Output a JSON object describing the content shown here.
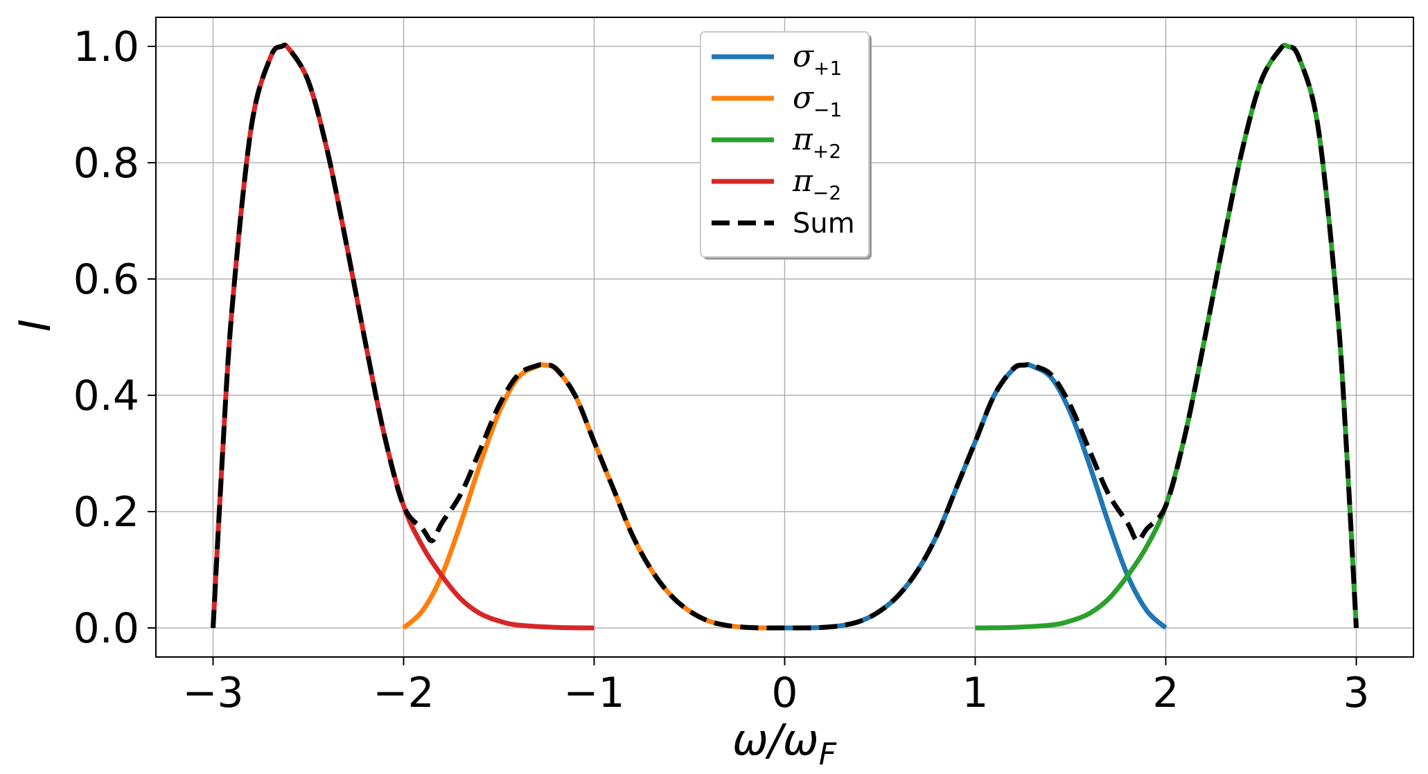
{
  "chart_data": {
    "type": "line",
    "xlabel": "ω/ω_F",
    "ylabel": "I",
    "xlim": [
      -3.3,
      3.3
    ],
    "ylim": [
      -0.05,
      1.05
    ],
    "xticks": [
      -3,
      -2,
      -1,
      0,
      1,
      2,
      3
    ],
    "xtick_labels": [
      "−3",
      "−2",
      "−1",
      "0",
      "1",
      "2",
      "3"
    ],
    "yticks": [
      0.0,
      0.2,
      0.4,
      0.6,
      0.8,
      1.0
    ],
    "ytick_labels": [
      "0.0",
      "0.2",
      "0.4",
      "0.6",
      "0.8",
      "1.0"
    ],
    "grid": true,
    "legend_position": "top-center",
    "series": [
      {
        "name": "σ₊₁",
        "base": "σ",
        "sub": "+1",
        "color": "#1f77b4",
        "style": "solid",
        "x": [
          0.0,
          0.1,
          0.2,
          0.3,
          0.4,
          0.5,
          0.6,
          0.7,
          0.8,
          0.9,
          1.0,
          1.1,
          1.2,
          1.26,
          1.3,
          1.4,
          1.5,
          1.6,
          1.7,
          1.8,
          1.9,
          2.0
        ],
        "y": [
          0.0,
          0.0,
          0.001,
          0.004,
          0.012,
          0.029,
          0.057,
          0.1,
          0.16,
          0.24,
          0.32,
          0.4,
          0.445,
          0.452,
          0.45,
          0.43,
          0.37,
          0.28,
          0.18,
          0.09,
          0.03,
          0.0
        ]
      },
      {
        "name": "σ₋₁",
        "base": "σ",
        "sub": "−1",
        "color": "#ff7f0e",
        "style": "solid",
        "x": [
          -2.0,
          -1.9,
          -1.8,
          -1.7,
          -1.6,
          -1.5,
          -1.4,
          -1.3,
          -1.26,
          -1.2,
          -1.1,
          -1.0,
          -0.9,
          -0.8,
          -0.7,
          -0.6,
          -0.5,
          -0.4,
          -0.3,
          -0.2,
          -0.1,
          0.0
        ],
        "y": [
          0.0,
          0.03,
          0.09,
          0.18,
          0.28,
          0.37,
          0.43,
          0.45,
          0.452,
          0.445,
          0.4,
          0.32,
          0.24,
          0.16,
          0.1,
          0.057,
          0.029,
          0.012,
          0.004,
          0.001,
          0.0,
          0.0
        ]
      },
      {
        "name": "π₊₂",
        "base": "π",
        "sub": "+2",
        "color": "#2ca02c",
        "style": "solid",
        "x": [
          1.0,
          1.2,
          1.4,
          1.5,
          1.6,
          1.7,
          1.8,
          1.9,
          2.0,
          2.1,
          2.2,
          2.3,
          2.4,
          2.5,
          2.6,
          2.64,
          2.7,
          2.8,
          2.9,
          2.95,
          3.0
        ],
        "y": [
          0.0,
          0.001,
          0.005,
          0.012,
          0.025,
          0.05,
          0.09,
          0.14,
          0.21,
          0.33,
          0.49,
          0.66,
          0.82,
          0.94,
          0.995,
          1.0,
          0.98,
          0.86,
          0.55,
          0.3,
          0.0
        ]
      },
      {
        "name": "π₋₂",
        "base": "π",
        "sub": "−2",
        "color": "#d62728",
        "style": "solid",
        "x": [
          -3.0,
          -2.95,
          -2.9,
          -2.8,
          -2.7,
          -2.64,
          -2.6,
          -2.5,
          -2.4,
          -2.3,
          -2.2,
          -2.1,
          -2.0,
          -1.9,
          -1.8,
          -1.7,
          -1.6,
          -1.5,
          -1.4,
          -1.2,
          -1.0
        ],
        "y": [
          0.0,
          0.3,
          0.55,
          0.86,
          0.98,
          1.0,
          0.995,
          0.94,
          0.82,
          0.66,
          0.49,
          0.33,
          0.21,
          0.14,
          0.09,
          0.05,
          0.025,
          0.012,
          0.005,
          0.001,
          0.0
        ]
      },
      {
        "name": "Sum",
        "base": "Sum",
        "sub": "",
        "color": "#000000",
        "style": "dashed",
        "x": [
          -3.0,
          -2.95,
          -2.9,
          -2.8,
          -2.7,
          -2.64,
          -2.6,
          -2.5,
          -2.4,
          -2.3,
          -2.2,
          -2.1,
          -2.0,
          -1.9,
          -1.85,
          -1.8,
          -1.7,
          -1.6,
          -1.5,
          -1.4,
          -1.3,
          -1.26,
          -1.2,
          -1.1,
          -1.0,
          -0.9,
          -0.8,
          -0.7,
          -0.6,
          -0.5,
          -0.4,
          -0.3,
          -0.2,
          -0.1,
          0.0,
          0.1,
          0.2,
          0.3,
          0.4,
          0.5,
          0.6,
          0.7,
          0.8,
          0.9,
          1.0,
          1.1,
          1.2,
          1.26,
          1.3,
          1.4,
          1.5,
          1.6,
          1.7,
          1.8,
          1.85,
          1.9,
          2.0,
          2.1,
          2.2,
          2.3,
          2.4,
          2.5,
          2.6,
          2.64,
          2.7,
          2.8,
          2.9,
          2.95,
          3.0
        ],
        "y": [
          0.0,
          0.3,
          0.55,
          0.86,
          0.98,
          1.0,
          0.995,
          0.94,
          0.82,
          0.66,
          0.49,
          0.33,
          0.21,
          0.17,
          0.15,
          0.18,
          0.23,
          0.305,
          0.382,
          0.435,
          0.451,
          0.452,
          0.446,
          0.4,
          0.32,
          0.24,
          0.16,
          0.1,
          0.057,
          0.029,
          0.012,
          0.004,
          0.001,
          0.0,
          0.0,
          0.0,
          0.001,
          0.004,
          0.012,
          0.029,
          0.057,
          0.1,
          0.16,
          0.24,
          0.32,
          0.4,
          0.446,
          0.452,
          0.451,
          0.435,
          0.382,
          0.305,
          0.23,
          0.18,
          0.15,
          0.17,
          0.21,
          0.33,
          0.49,
          0.66,
          0.82,
          0.94,
          0.995,
          1.0,
          0.98,
          0.86,
          0.55,
          0.3,
          0.0
        ]
      }
    ]
  }
}
